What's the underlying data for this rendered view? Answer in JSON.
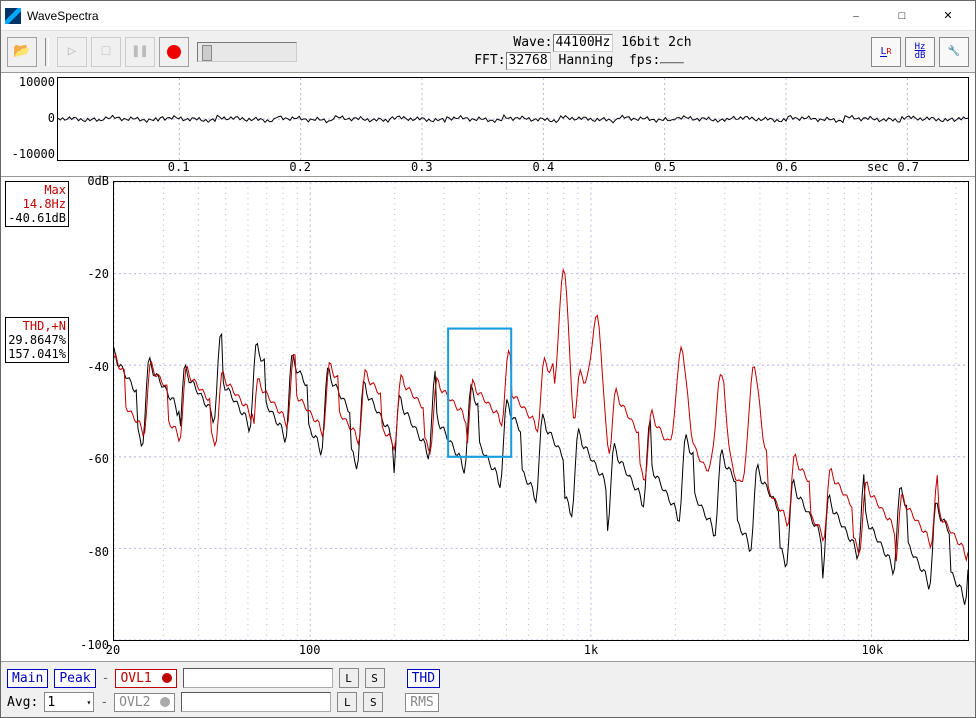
{
  "window": {
    "title": "WaveSpectra"
  },
  "toolbar": {
    "wave_label": "Wave:",
    "wave_sr": "44100Hz",
    "wave_fmt": "16bit 2ch",
    "fft_label": "FFT:",
    "fft_size": "32768",
    "fft_window": "Hanning",
    "fps_label": "fps:",
    "fps_value": "",
    "icon_lr": "L\nR",
    "icon_hzdb": "Hz\ndB",
    "icon_tool": "🔧"
  },
  "wave_chart": {
    "type": "line",
    "ylim": [
      -10000,
      10000
    ],
    "yticks": [
      -10000,
      0,
      10000
    ],
    "xlim": [
      0,
      0.75
    ],
    "xticks": [
      0.1,
      0.2,
      0.3,
      0.4,
      0.5,
      0.6,
      0.7
    ],
    "xunit": "sec",
    "line_color": "#000000",
    "grid_color": "#b8b8e0",
    "background_color": "#ffffff",
    "noise_amp": 400,
    "noise_pts": 400
  },
  "meas": {
    "max_label": "Max",
    "max_label_color": "#c00000",
    "max_freq": "14.8Hz",
    "max_freq_color": "#c00000",
    "max_db": "-40.61dB",
    "thd_label": "THD,+N",
    "thd_label_color": "#c00000",
    "thd_val": "29.8647%",
    "thd_val2": "157.041%"
  },
  "spec_chart": {
    "type": "line",
    "ylim": [
      -100,
      0
    ],
    "yticks": [
      0,
      -20,
      -40,
      -60,
      -80,
      -100
    ],
    "ylabel_suffix": "dB",
    "xlim_log": [
      20,
      22050
    ],
    "xticks": [
      20,
      100,
      1000,
      10000
    ],
    "xtick_labels": [
      "20",
      "100",
      "1k",
      "10k"
    ],
    "grid_color": "#b8b8e0",
    "background_color": "#ffffff",
    "series": [
      {
        "name": "black",
        "color": "#000000",
        "offset": -12,
        "amp": 6,
        "peak_freq": null,
        "peak_db": null,
        "start_db": -40,
        "end_db": -82
      },
      {
        "name": "red",
        "color": "#c00000",
        "offset": 0,
        "amp": 5,
        "peak_freq": 800,
        "peak_db": -19,
        "start_db": -42,
        "end_db": -76,
        "peaks": [
          {
            "f": 800,
            "db": -19
          },
          {
            "f": 1050,
            "db": -29
          },
          {
            "f": 2100,
            "db": -36
          },
          {
            "f": 2900,
            "db": -42
          },
          {
            "f": 3800,
            "db": -40
          }
        ]
      }
    ],
    "selection_box": {
      "x0_freq": 310,
      "x1_freq": 520,
      "y0_db": -32,
      "y1_db": -60,
      "color": "#1a9de0",
      "width": 2
    }
  },
  "bottombar": {
    "main": "Main",
    "peak": "Peak",
    "ovl1": "OVL1",
    "ovl2": "OVL2",
    "l": "L",
    "s": "S",
    "thd": "THD",
    "rms": "RMS",
    "avg_label": "Avg:",
    "avg_val": "1"
  },
  "colors": {
    "blue_ui": "#0000c0",
    "red_ui": "#c00000",
    "grid": "#b8b8e0",
    "sel_box": "#1a9de0",
    "panel_bg": "#f0f0f0"
  }
}
